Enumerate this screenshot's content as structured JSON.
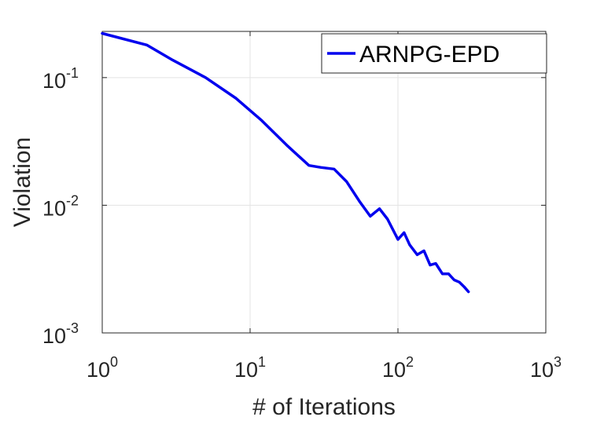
{
  "chart_data": {
    "type": "line",
    "title": "",
    "xlabel": "# of Iterations",
    "ylabel": "Violation",
    "xscale": "log",
    "yscale": "log",
    "xlim": [
      1,
      1000
    ],
    "ylim": [
      0.001,
      0.23
    ],
    "grid": true,
    "legend_placement": "top-right",
    "x_ticks": [
      {
        "value": 1,
        "base": "10",
        "exp": "0"
      },
      {
        "value": 10,
        "base": "10",
        "exp": "1"
      },
      {
        "value": 100,
        "base": "10",
        "exp": "2"
      },
      {
        "value": 1000,
        "base": "10",
        "exp": "3"
      }
    ],
    "y_ticks": [
      {
        "value": 0.001,
        "base": "10",
        "exp": "-3"
      },
      {
        "value": 0.01,
        "base": "10",
        "exp": "-2"
      },
      {
        "value": 0.1,
        "base": "10",
        "exp": "-1"
      }
    ],
    "series": [
      {
        "name": "ARNPG-EPD",
        "color": "#0000ee",
        "x": [
          1,
          2,
          3,
          5,
          8,
          12,
          18,
          25,
          30,
          37,
          45,
          55,
          65,
          75,
          85,
          100,
          110,
          120,
          135,
          150,
          165,
          180,
          200,
          220,
          240,
          260,
          280,
          300
        ],
        "y": [
          0.222,
          0.18,
          0.137,
          0.1,
          0.069,
          0.046,
          0.029,
          0.0205,
          0.0198,
          0.0192,
          0.0153,
          0.0107,
          0.0082,
          0.0094,
          0.0078,
          0.0054,
          0.0061,
          0.0049,
          0.0041,
          0.0044,
          0.0034,
          0.0035,
          0.0029,
          0.0029,
          0.0026,
          0.0025,
          0.0023,
          0.0021
        ]
      }
    ]
  }
}
